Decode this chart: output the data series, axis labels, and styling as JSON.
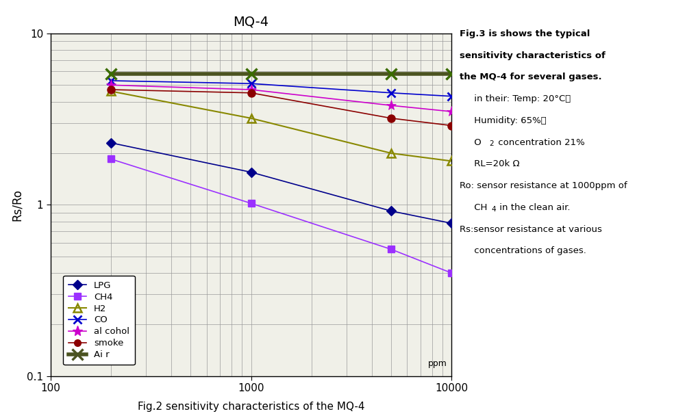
{
  "title": "MQ-4",
  "ylabel": "Rs/Ro",
  "caption": "Fig.2 sensitivity characteristics of the MQ-4",
  "xlim": [
    100,
    10000
  ],
  "ylim": [
    0.1,
    10
  ],
  "series": {
    "LPG": {
      "x": [
        200,
        1000,
        5000,
        10000
      ],
      "y": [
        2.3,
        1.55,
        0.92,
        0.78
      ],
      "color": "#00008B",
      "marker": "D",
      "linewidth": 1.2
    },
    "CH4": {
      "x": [
        200,
        1000,
        5000,
        10000
      ],
      "y": [
        1.85,
        1.02,
        0.55,
        0.4
      ],
      "color": "#9B30FF",
      "marker": "s",
      "linewidth": 1.2
    },
    "H2": {
      "x": [
        200,
        1000,
        5000,
        10000
      ],
      "y": [
        4.6,
        3.2,
        2.0,
        1.8
      ],
      "color": "#888800",
      "marker": "^",
      "linewidth": 1.5
    },
    "CO": {
      "x": [
        200,
        1000,
        5000,
        10000
      ],
      "y": [
        5.3,
        5.1,
        4.5,
        4.3
      ],
      "color": "#0000CD",
      "marker": "x",
      "linewidth": 1.2
    },
    "alcohol": {
      "x": [
        200,
        1000,
        5000,
        10000
      ],
      "y": [
        5.0,
        4.7,
        3.8,
        3.5
      ],
      "color": "#CC00CC",
      "marker": "*",
      "linewidth": 1.2
    },
    "smoke": {
      "x": [
        200,
        1000,
        5000,
        10000
      ],
      "y": [
        4.7,
        4.5,
        3.2,
        2.9
      ],
      "color": "#8B0000",
      "marker": "o",
      "linewidth": 1.2
    },
    "Air": {
      "x": [
        200,
        1000,
        5000,
        10000
      ],
      "y": [
        5.8,
        5.8,
        5.8,
        5.8
      ],
      "color": "#4B5320",
      "marker": "x",
      "linewidth": 4.0
    }
  },
  "annotation": {
    "line1": "Fig.3 is shows the typical",
    "line2": "sensitivity characteristics of",
    "line3": "the MQ-4 for several gases.",
    "line4_indent": "     in their: Temp: 20",
    "line4_deg": "°C、",
    "line5": "     Humidity: 65%、",
    "line6a": "     O",
    "line6b": " concentration 21%",
    "line7": "     RL=20k Ω",
    "line8": "Ro: sensor resistance at 1000ppm of",
    "line9a": "     CH",
    "line9b": " in the clean air.",
    "line10": "Rs:sensor resistance at various",
    "line11": "     concentrations of gases."
  },
  "background_color": "#f0f0e8",
  "grid_color": "#999999"
}
